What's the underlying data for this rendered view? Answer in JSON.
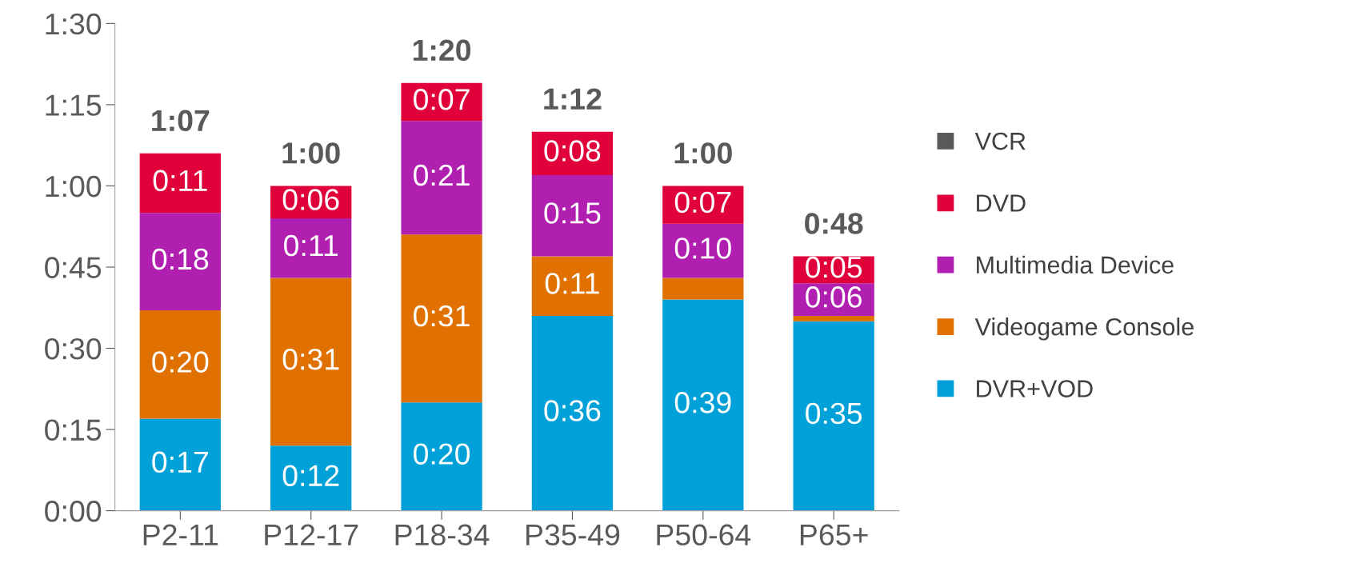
{
  "chart_data": {
    "type": "bar",
    "stacked": true,
    "categories": [
      "P2-11",
      "P12-17",
      "P18-34",
      "P35-49",
      "P50-64",
      "P65+"
    ],
    "series": [
      {
        "name": "DVR+VOD",
        "color": "#00a0d8",
        "values": [
          17,
          12,
          20,
          36,
          39,
          35
        ],
        "value_labels": [
          "0:17",
          "0:12",
          "0:20",
          "0:36",
          "0:39",
          "0:35"
        ]
      },
      {
        "name": "Videogame Console",
        "color": "#e07000",
        "values": [
          20,
          31,
          31,
          11,
          4,
          1
        ],
        "value_labels": [
          "0:20",
          "0:31",
          "0:31",
          "0:11",
          null,
          null
        ]
      },
      {
        "name": "Multimedia Device",
        "color": "#b01fb0",
        "values": [
          18,
          11,
          21,
          15,
          10,
          6
        ],
        "value_labels": [
          "0:18",
          "0:11",
          "0:21",
          "0:15",
          "0:10",
          "0:06"
        ]
      },
      {
        "name": "DVD",
        "color": "#e0003a",
        "values": [
          11,
          6,
          7,
          8,
          7,
          5
        ],
        "value_labels": [
          "0:11",
          "0:06",
          "0:07",
          "0:08",
          "0:07",
          "0:05"
        ]
      },
      {
        "name": "VCR",
        "color": "#595959",
        "values": [
          0,
          0,
          0,
          0,
          0,
          0
        ]
      }
    ],
    "totals": [
      "1:07",
      "1:00",
      "1:20",
      "1:12",
      "1:00",
      "0:48"
    ],
    "ylim": [
      0,
      90
    ],
    "yticks": [
      {
        "value": 0,
        "label": "0:00"
      },
      {
        "value": 15,
        "label": "0:15"
      },
      {
        "value": 30,
        "label": "0:30"
      },
      {
        "value": 45,
        "label": "0:45"
      },
      {
        "value": 60,
        "label": "1:00"
      },
      {
        "value": 75,
        "label": "1:15"
      },
      {
        "value": 90,
        "label": "1:30"
      }
    ],
    "legend": "right",
    "grid": false,
    "marker": "square"
  }
}
